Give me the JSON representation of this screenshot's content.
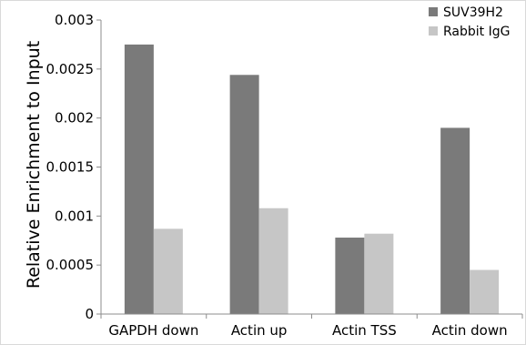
{
  "chart_data": {
    "type": "bar",
    "categories": [
      "GAPDH down",
      "Actin up",
      "Actin TSS",
      "Actin down"
    ],
    "series": [
      {
        "name": "SUV39H2",
        "values": [
          0.00275,
          0.00244,
          0.00078,
          0.0019
        ],
        "color": "#7a7a7a"
      },
      {
        "name": "Rabbit IgG",
        "values": [
          0.00087,
          0.00108,
          0.00082,
          0.00045
        ],
        "color": "#c6c6c6"
      }
    ],
    "title": "",
    "xlabel": "",
    "ylabel": "Relative Enrichment to Input",
    "ylim": [
      0,
      0.003
    ],
    "yticks": [
      0,
      0.0005,
      0.001,
      0.0015,
      0.002,
      0.0025,
      0.003
    ],
    "ytick_labels": [
      "0",
      "0.0005",
      "0.001",
      "0.0015",
      "0.002",
      "0.0025",
      "0.003"
    ],
    "grid": false,
    "legend_position": "top-right"
  }
}
